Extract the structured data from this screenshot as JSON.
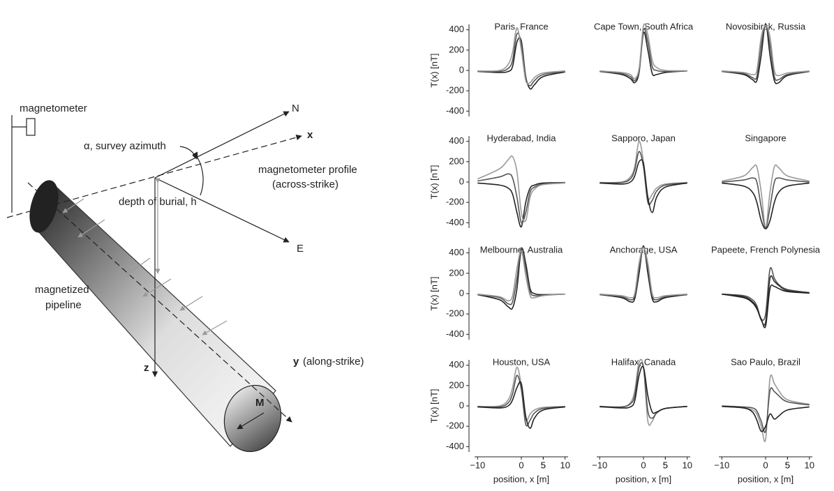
{
  "diagram": {
    "labels": [
      "magnetometer",
      "N",
      "x",
      "α, survey azimuth",
      "magnetometer profile",
      "(across-strike)",
      "depth of burial, h",
      "E",
      "magnetized",
      "pipeline",
      "M",
      "z",
      "y",
      "(along-strike)"
    ]
  },
  "chart_data": [
    {
      "type": "line",
      "title": "Paris, France",
      "ylabel": "T(x) [nT]",
      "x": [
        -10,
        -5,
        -3,
        -2,
        -1,
        0,
        1,
        2,
        3,
        5,
        10
      ],
      "xlim": [
        -11,
        11
      ],
      "ylim": [
        -480,
        480
      ],
      "yticks": [
        -400,
        -200,
        0,
        200,
        400
      ],
      "series": [
        {
          "color": "#222222",
          "values": [
            -10,
            -20,
            -10,
            40,
            280,
            290,
            -60,
            -180,
            -140,
            -60,
            -15
          ]
        },
        {
          "color": "#555555",
          "values": [
            -8,
            -10,
            20,
            100,
            360,
            260,
            -80,
            -150,
            -100,
            -40,
            -10
          ]
        },
        {
          "color": "#999999",
          "values": [
            -5,
            0,
            60,
            180,
            420,
            200,
            -100,
            -120,
            -70,
            -25,
            -5
          ]
        }
      ]
    },
    {
      "type": "line",
      "title": "Cape Town, South Africa",
      "x": [
        -10,
        -5,
        -3,
        -2,
        -1,
        0,
        1,
        2,
        3,
        5,
        10
      ],
      "xlim": [
        -11,
        11
      ],
      "ylim": [
        -480,
        480
      ],
      "series": [
        {
          "color": "#222222",
          "values": [
            -10,
            -40,
            -80,
            -120,
            -20,
            370,
            200,
            -30,
            -40,
            -20,
            -5
          ]
        },
        {
          "color": "#555555",
          "values": [
            -8,
            -30,
            -60,
            -100,
            0,
            400,
            280,
            40,
            0,
            -10,
            -5
          ]
        },
        {
          "color": "#999999",
          "values": [
            -5,
            -20,
            -40,
            -80,
            20,
            440,
            350,
            100,
            30,
            0,
            -3
          ]
        }
      ]
    },
    {
      "type": "line",
      "title": "Novosibirsk, Russia",
      "x": [
        -10,
        -5,
        -3,
        -2,
        -1,
        0,
        1,
        2,
        3,
        5,
        10
      ],
      "xlim": [
        -11,
        11
      ],
      "ylim": [
        -480,
        480
      ],
      "series": [
        {
          "color": "#222222",
          "values": [
            -10,
            -40,
            -90,
            -100,
            150,
            460,
            150,
            -100,
            -120,
            -50,
            -10
          ]
        },
        {
          "color": "#555555",
          "values": [
            -8,
            -30,
            -70,
            -60,
            250,
            450,
            250,
            -60,
            -90,
            -40,
            -8
          ]
        },
        {
          "color": "#999999",
          "values": [
            -5,
            -20,
            -40,
            0,
            330,
            440,
            330,
            0,
            -50,
            -25,
            -5
          ]
        }
      ]
    },
    {
      "type": "line",
      "title": "Hyderabad, India",
      "ylabel": "T(x) [nT]",
      "x": [
        -10,
        -5,
        -3,
        -2,
        -1,
        0,
        1,
        2,
        3,
        5,
        10
      ],
      "xlim": [
        -11,
        11
      ],
      "ylim": [
        -480,
        480
      ],
      "yticks": [
        -400,
        -200,
        0,
        200,
        400
      ],
      "series": [
        {
          "color": "#222222",
          "values": [
            -10,
            -30,
            -60,
            -120,
            -300,
            -440,
            -200,
            -60,
            -30,
            -10,
            -5
          ]
        },
        {
          "color": "#555555",
          "values": [
            10,
            50,
            80,
            40,
            -150,
            -400,
            -300,
            -100,
            -50,
            -20,
            -5
          ]
        },
        {
          "color": "#999999",
          "values": [
            30,
            130,
            220,
            250,
            100,
            -300,
            -380,
            -150,
            -70,
            -25,
            -10
          ]
        }
      ]
    },
    {
      "type": "line",
      "title": "Sapporo, Japan",
      "x": [
        -10,
        -5,
        -3,
        -2,
        -1,
        0,
        1,
        2,
        3,
        5,
        10
      ],
      "xlim": [
        -11,
        11
      ],
      "ylim": [
        -480,
        480
      ],
      "series": [
        {
          "color": "#999999",
          "values": [
            -5,
            0,
            50,
            150,
            400,
            200,
            -150,
            -120,
            -60,
            -20,
            -5
          ]
        },
        {
          "color": "#555555",
          "values": [
            -8,
            -5,
            30,
            120,
            300,
            150,
            -200,
            -180,
            -90,
            -30,
            -8
          ]
        },
        {
          "color": "#222222",
          "values": [
            -10,
            -20,
            0,
            60,
            200,
            180,
            -150,
            -300,
            -150,
            -50,
            -10
          ]
        }
      ]
    },
    {
      "type": "line",
      "title": "Singapore",
      "x": [
        -10,
        -5,
        -3,
        -2,
        -1,
        0,
        1,
        2,
        3,
        5,
        10
      ],
      "xlim": [
        -11,
        11
      ],
      "ylim": [
        -480,
        480
      ],
      "series": [
        {
          "color": "#222222",
          "values": [
            -10,
            -40,
            -100,
            -200,
            -380,
            -460,
            -380,
            -200,
            -100,
            -40,
            -10
          ]
        },
        {
          "color": "#555555",
          "values": [
            0,
            20,
            40,
            0,
            -250,
            -450,
            -250,
            0,
            40,
            20,
            0
          ]
        },
        {
          "color": "#999999",
          "values": [
            10,
            60,
            140,
            150,
            -100,
            -440,
            -100,
            150,
            140,
            60,
            10
          ]
        }
      ]
    },
    {
      "type": "line",
      "title": "Melbourne, Australia",
      "ylabel": "T(x) [nT]",
      "x": [
        -10,
        -5,
        -3,
        -2,
        -1,
        0,
        1,
        2,
        3,
        5,
        10
      ],
      "xlim": [
        -11,
        11
      ],
      "ylim": [
        -480,
        480
      ],
      "yticks": [
        -400,
        -200,
        0,
        200,
        400
      ],
      "series": [
        {
          "color": "#222222",
          "values": [
            -10,
            -60,
            -130,
            -140,
            50,
            440,
            300,
            50,
            0,
            -10,
            -5
          ]
        },
        {
          "color": "#555555",
          "values": [
            -8,
            -40,
            -100,
            -80,
            150,
            450,
            250,
            20,
            -20,
            -15,
            -5
          ]
        },
        {
          "color": "#999999",
          "values": [
            -5,
            -30,
            -70,
            -20,
            250,
            420,
            180,
            -20,
            -40,
            -20,
            -5
          ]
        }
      ]
    },
    {
      "type": "line",
      "title": "Anchorage, USA",
      "x": [
        -10,
        -5,
        -3,
        -2,
        -1,
        0,
        1,
        2,
        3,
        5,
        10
      ],
      "xlim": [
        -11,
        11
      ],
      "ylim": [
        -480,
        480
      ],
      "series": [
        {
          "color": "#222222",
          "values": [
            -10,
            -40,
            -80,
            -50,
            200,
            470,
            200,
            -50,
            -80,
            -40,
            -10
          ]
        },
        {
          "color": "#555555",
          "values": [
            -8,
            -30,
            -60,
            -20,
            250,
            460,
            250,
            -20,
            -60,
            -30,
            -8
          ]
        },
        {
          "color": "#999999",
          "values": [
            -5,
            -20,
            -40,
            0,
            300,
            450,
            300,
            0,
            -40,
            -20,
            -5
          ]
        }
      ]
    },
    {
      "type": "line",
      "title": "Papeete, French Polynesia",
      "x": [
        -10,
        -5,
        -3,
        -2,
        -1,
        0,
        1,
        2,
        3,
        5,
        10
      ],
      "xlim": [
        -11,
        11
      ],
      "ylim": [
        -480,
        480
      ],
      "series": [
        {
          "color": "#555555",
          "values": [
            -5,
            -20,
            -60,
            -120,
            -250,
            -200,
            240,
            150,
            90,
            40,
            10
          ]
        },
        {
          "color": "#333333",
          "values": [
            -5,
            -30,
            -80,
            -140,
            -260,
            -280,
            150,
            120,
            80,
            30,
            8
          ]
        },
        {
          "color": "#222222",
          "values": [
            -5,
            -40,
            -90,
            -150,
            -250,
            -320,
            50,
            70,
            50,
            20,
            5
          ]
        }
      ]
    },
    {
      "type": "line",
      "title": "Houston, USA",
      "ylabel": "T(x) [nT]",
      "xlabel": "position, x [m]",
      "x": [
        -10,
        -5,
        -3,
        -2,
        -1,
        0,
        1,
        2,
        3,
        5,
        10
      ],
      "xlim": [
        -11,
        11
      ],
      "ylim": [
        -480,
        480
      ],
      "yticks": [
        -400,
        -200,
        0,
        200,
        400
      ],
      "xticks": [
        {
          "value": -10,
          "label": "−10"
        },
        5,
        0,
        5,
        10
      ],
      "series": [
        {
          "color": "#999999",
          "values": [
            -5,
            0,
            60,
            180,
            380,
            200,
            -130,
            -80,
            -40,
            -15,
            -5
          ]
        },
        {
          "color": "#555555",
          "values": [
            -8,
            -10,
            30,
            120,
            300,
            160,
            -180,
            -140,
            -70,
            -25,
            -8
          ]
        },
        {
          "color": "#222222",
          "values": [
            -10,
            -20,
            0,
            60,
            180,
            220,
            -100,
            -220,
            -120,
            -40,
            -10
          ]
        }
      ]
    },
    {
      "type": "line",
      "title": "Halifax, Canada",
      "xlabel": "position, x [m]",
      "x": [
        -10,
        -5,
        -3,
        -2,
        -1,
        0,
        1,
        2,
        3,
        5,
        10
      ],
      "xlim": [
        -11,
        11
      ],
      "ylim": [
        -480,
        480
      ],
      "xticks": [
        {
          "value": -10,
          "label": "−10"
        },
        5,
        0,
        5,
        10
      ],
      "series": [
        {
          "color": "#999999",
          "values": [
            -5,
            -10,
            30,
            150,
            430,
            380,
            -150,
            -150,
            -70,
            -25,
            -5
          ]
        },
        {
          "color": "#555555",
          "values": [
            -5,
            -10,
            20,
            100,
            380,
            380,
            -50,
            -120,
            -70,
            -25,
            -5
          ]
        },
        {
          "color": "#222222",
          "values": [
            -8,
            -20,
            -10,
            50,
            300,
            380,
            100,
            -60,
            -60,
            -25,
            -5
          ]
        }
      ]
    },
    {
      "type": "line",
      "title": "Sao Paulo, Brazil",
      "xlabel": "position, x [m]",
      "x": [
        -10,
        -5,
        -3,
        -2,
        -1,
        0,
        1,
        2,
        3,
        5,
        10
      ],
      "xlim": [
        -11,
        11
      ],
      "ylim": [
        -480,
        480
      ],
      "xticks": [
        {
          "value": -10,
          "label": "−10"
        },
        5,
        0,
        5,
        10
      ],
      "series": [
        {
          "color": "#999999",
          "values": [
            -5,
            -20,
            -40,
            -80,
            -200,
            -330,
            270,
            220,
            150,
            60,
            15
          ]
        },
        {
          "color": "#555555",
          "values": [
            0,
            -10,
            -20,
            -50,
            -150,
            -250,
            150,
            140,
            100,
            40,
            10
          ]
        },
        {
          "color": "#222222",
          "values": [
            -5,
            -20,
            -60,
            -140,
            -250,
            -200,
            -80,
            -130,
            -100,
            -40,
            -10
          ]
        }
      ]
    }
  ]
}
